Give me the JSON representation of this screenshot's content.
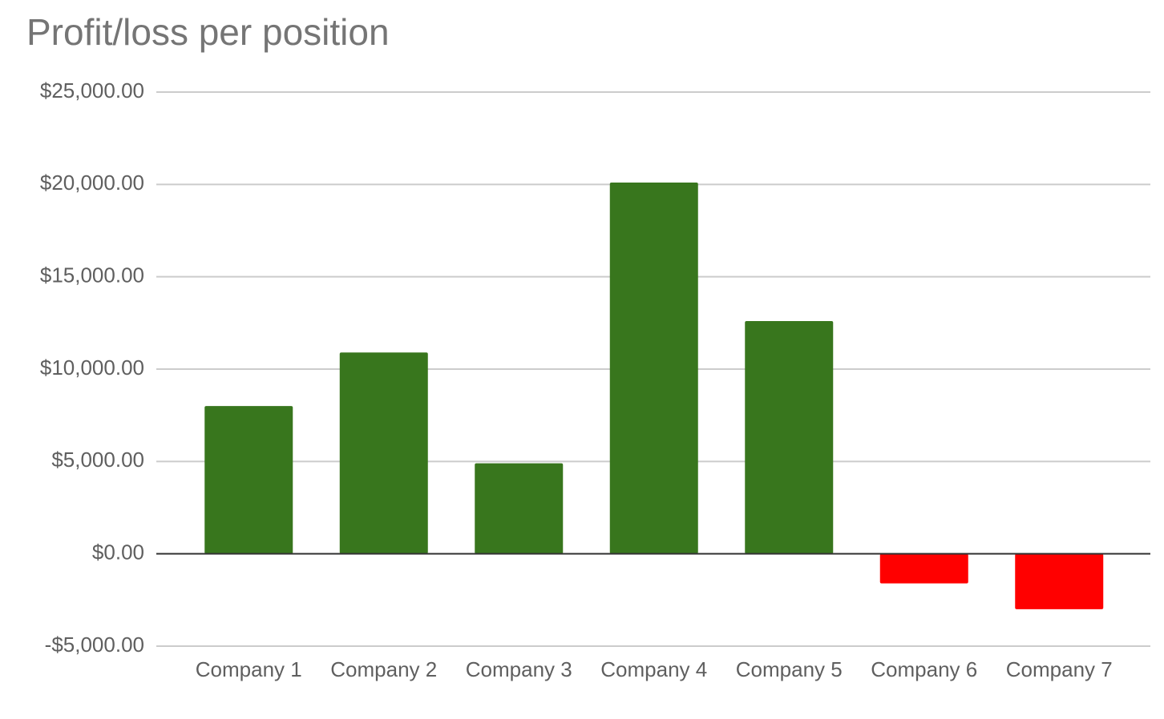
{
  "chart_data": {
    "type": "bar",
    "title": "Profit/loss per position",
    "categories": [
      "Company 1",
      "Company 2",
      "Company 3",
      "Company 4",
      "Company 5",
      "Company 6",
      "Company 7"
    ],
    "values": [
      8000,
      10900,
      4900,
      20100,
      12600,
      -1600,
      -3000
    ],
    "colors": [
      "#38761d",
      "#38761d",
      "#38761d",
      "#38761d",
      "#38761d",
      "#ff0000",
      "#ff0000"
    ],
    "ylim": [
      -5000,
      25000
    ],
    "yticks": [
      {
        "value": -5000,
        "label": "-$5,000.00"
      },
      {
        "value": 0,
        "label": "$0.00"
      },
      {
        "value": 5000,
        "label": "$5,000.00"
      },
      {
        "value": 10000,
        "label": "$10,000.00"
      },
      {
        "value": 15000,
        "label": "$15,000.00"
      },
      {
        "value": 20000,
        "label": "$20,000.00"
      },
      {
        "value": 25000,
        "label": "$25,000.00"
      }
    ],
    "grid": true
  }
}
